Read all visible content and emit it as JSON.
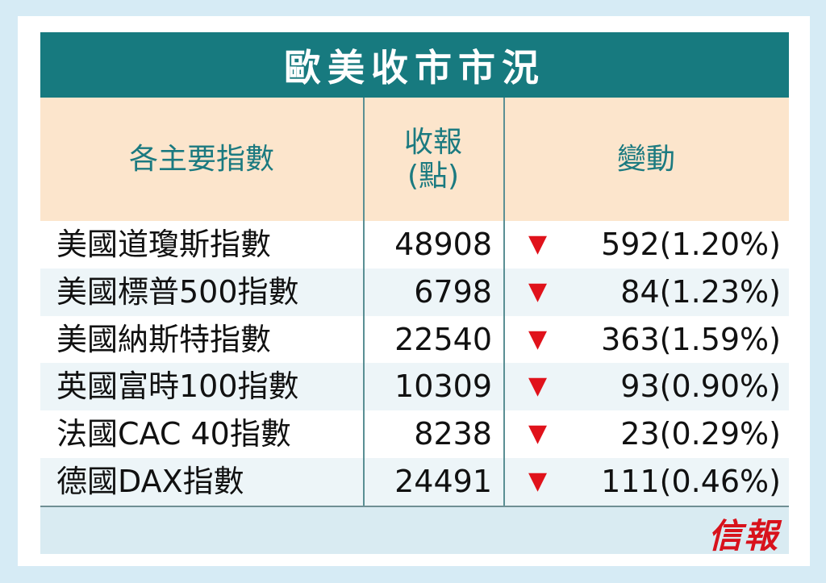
{
  "title": "歐美收市市況",
  "headers": {
    "col1": "各主要指數",
    "col2_line1": "收報",
    "col2_line2": "(點)",
    "col3": "變動"
  },
  "arrow_symbol": "▼",
  "arrow_color": "#e0121b",
  "rows": [
    {
      "name": "美國道瓊斯指數",
      "close": "48908",
      "change": "592(1.20%)"
    },
    {
      "name": "美國標普500指數",
      "close": "6798",
      "change": "84(1.23%)"
    },
    {
      "name": "美國納斯特指數",
      "close": "22540",
      "change": "363(1.59%)"
    },
    {
      "name": "英國富時100指數",
      "close": "10309",
      "change": "93(0.90%)"
    },
    {
      "name": "法國CAC 40指數",
      "close": "8238",
      "change": "23(0.29%)"
    },
    {
      "name": "德國DAX指數",
      "close": "24491",
      "change": "111(0.46%)"
    }
  ],
  "logo": "信報"
}
